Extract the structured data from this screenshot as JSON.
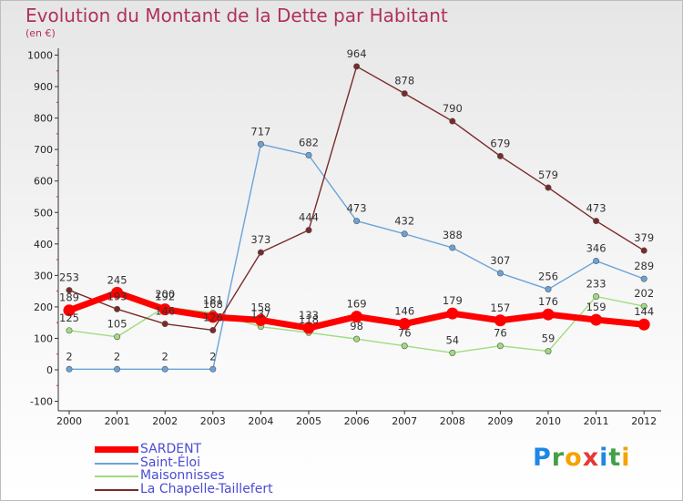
{
  "chart_data": {
    "type": "line",
    "title": "Evolution du Montant de la Dette par Habitant",
    "subtitle": "(en €)",
    "xlabel": "",
    "ylabel": "",
    "x": [
      "2000",
      "2001",
      "2002",
      "2003",
      "2004",
      "2005",
      "2006",
      "2007",
      "2008",
      "2009",
      "2010",
      "2011",
      "2012"
    ],
    "ylim": [
      -100,
      1000
    ],
    "yticks": [
      -100,
      0,
      100,
      200,
      300,
      400,
      500,
      600,
      700,
      800,
      900,
      1000
    ],
    "grid": false,
    "legend_position": "bottom-left",
    "series": [
      {
        "name": "SARDENT",
        "color": "#ff0000",
        "width": 7,
        "values": [
          189,
          245,
          192,
          168,
          158,
          133,
          169,
          146,
          179,
          157,
          176,
          159,
          144
        ]
      },
      {
        "name": "Saint-Éloi",
        "color": "#6aa3d8",
        "width": 1.4,
        "values": [
          2,
          2,
          2,
          2,
          717,
          682,
          473,
          432,
          388,
          307,
          256,
          346,
          289
        ]
      },
      {
        "name": "Maisonnisses",
        "color": "#9fdc7e",
        "width": 1.4,
        "values": [
          125,
          105,
          200,
          181,
          137,
          118,
          98,
          76,
          54,
          76,
          59,
          233,
          202
        ]
      },
      {
        "name": "La Chapelle-Taillefert",
        "color": "#7a2a2a",
        "width": 1.4,
        "values": [
          253,
          193,
          146,
          126,
          373,
          444,
          964,
          878,
          790,
          679,
          579,
          473,
          379
        ]
      }
    ]
  },
  "brand": {
    "letters": [
      "P",
      "r",
      "o",
      "x",
      "i",
      "t",
      "i"
    ],
    "colors": [
      "#1e88e5",
      "#43a047",
      "#f5a300",
      "#e53935",
      "#1e88e5",
      "#43a047",
      "#f5a300"
    ]
  }
}
